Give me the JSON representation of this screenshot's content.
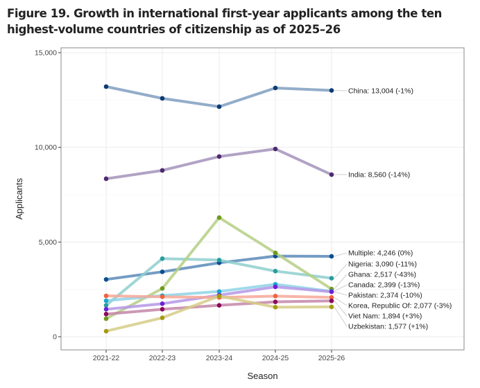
{
  "chart_data": {
    "type": "line",
    "title": "Figure 19. Growth in international first-year applicants among the ten highest-volume countries of citizenship as of 2025–26",
    "xlabel": "Season",
    "ylabel": "Applicants",
    "categories": [
      "2021-22",
      "2022-23",
      "2023-24",
      "2024-25",
      "2025-26"
    ],
    "ylim": [
      0,
      15000
    ],
    "yticks": [
      0,
      5000,
      10000,
      15000
    ],
    "ytick_labels": [
      "0",
      "5,000",
      "10,000",
      "15,000"
    ],
    "grid": true,
    "legend": "direct labels at right",
    "series": [
      {
        "name": "China",
        "values": [
          13207,
          12586,
          12147,
          13135,
          13004
        ],
        "label": "China: 13,004 (-1%)",
        "line_color": "#7f9fbf",
        "point_color": "#0d3b73"
      },
      {
        "name": "India",
        "values": [
          8342,
          8781,
          9513,
          9915,
          8560
        ],
        "label": "India: 8,560 (-14%)",
        "line_color": "#a393bb",
        "point_color": "#4e2a6e"
      },
      {
        "name": "Multiple",
        "values": [
          3025,
          3427,
          3903,
          4256,
          4246
        ],
        "label": "Multiple: 4,246 (0%)",
        "line_color": "#5b8bb8",
        "point_color": "#0b4f92"
      },
      {
        "name": "Nigeria",
        "values": [
          1658,
          4123,
          4050,
          3464,
          3090
        ],
        "label": "Nigeria: 3,090 (-11%)",
        "line_color": "#8fcfcf",
        "point_color": "#2a9c9e"
      },
      {
        "name": "Ghana",
        "values": [
          951,
          2549,
          6290,
          4427,
          2517
        ],
        "label": "Ghana: 2,517 (-43%)",
        "line_color": "#b5cf84",
        "point_color": "#6e9a1e"
      },
      {
        "name": "Canada",
        "values": [
          1902,
          2171,
          2390,
          2768,
          2399
        ],
        "label": "Canada: 2,399 (-13%)",
        "line_color": "#8fd3e6",
        "point_color": "#19a6d1"
      },
      {
        "name": "Pakistan",
        "values": [
          1451,
          1744,
          2195,
          2634,
          2374
        ],
        "label": "Pakistan: 2,374 (-10%)",
        "line_color": "#b596e6",
        "point_color": "#6a22d6"
      },
      {
        "name": "Korea, Republic Of",
        "values": [
          2158,
          2110,
          2073,
          2146,
          2077
        ],
        "label": "Korea, Republic Of: 2,077 (-3%)",
        "line_color": "#f6a898",
        "point_color": "#f0643e"
      },
      {
        "name": "Viet Nam",
        "values": [
          1195,
          1451,
          1658,
          1842,
          1894
        ],
        "label": "Viet Nam: 1,894 (+3%)",
        "line_color": "#c486a8",
        "point_color": "#8a0a5a"
      },
      {
        "name": "Uzbekistan",
        "values": [
          293,
          1000,
          2146,
          1561,
          1577
        ],
        "label": "Uzbekistan: 1,577 (+1%)",
        "line_color": "#d6cd86",
        "point_color": "#a39a10"
      }
    ]
  }
}
